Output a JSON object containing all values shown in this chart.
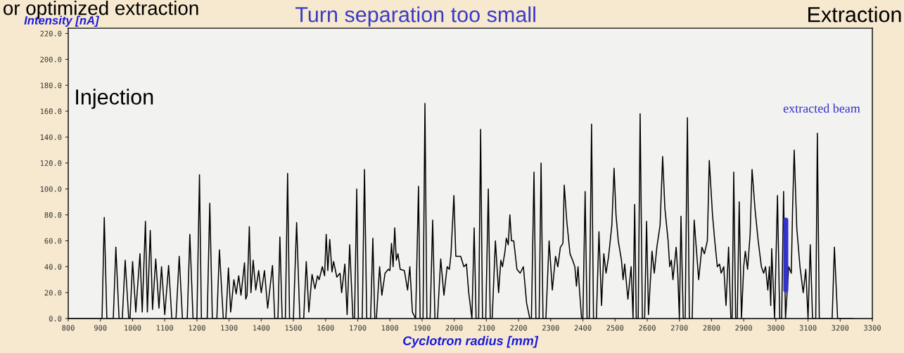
{
  "chart_data": {
    "type": "line",
    "title": "or optimized extraction",
    "xlabel": "Cyclotron radius [mm]",
    "ylabel": "Intensity [nA]",
    "annotations": [
      "Turn separation too small",
      "Injection",
      "Extraction"
    ],
    "xlim": [
      800,
      3300
    ],
    "ylim": [
      0,
      224
    ],
    "xticks": [
      800,
      900,
      1000,
      1100,
      1200,
      1300,
      1400,
      1500,
      1600,
      1700,
      1800,
      1900,
      2000,
      2100,
      2200,
      2300,
      2400,
      2500,
      2600,
      2700,
      2800,
      2900,
      3000,
      3100,
      3200,
      3300
    ],
    "yticks": [
      {
        "value": 0,
        "label": "0.0"
      },
      {
        "value": 20,
        "label": "20.0"
      },
      {
        "value": 40,
        "label": "40.0"
      },
      {
        "value": 60,
        "label": "60.0"
      },
      {
        "value": 80,
        "label": "80.0"
      },
      {
        "value": 100,
        "label": "100.0"
      },
      {
        "value": 120,
        "label": "120.0"
      },
      {
        "value": 140,
        "label": "140.0"
      },
      {
        "value": 160,
        "label": "160.0"
      },
      {
        "value": 180,
        "label": "180.0"
      },
      {
        "value": 200,
        "label": "200.0"
      },
      {
        "value": 220,
        "label": "220.0"
      }
    ],
    "grid": false,
    "legend": false,
    "series": [
      {
        "color": "#000000",
        "x": [
          800,
          900,
          905,
          912,
          920,
          940,
          948,
          958,
          968,
          977,
          988,
          992,
          1000,
          1010,
          1023,
          1030,
          1040,
          1046,
          1055,
          1062,
          1072,
          1082,
          1090,
          1100,
          1112,
          1122,
          1135,
          1145,
          1155,
          1170,
          1178,
          1188,
          1200,
          1208,
          1214,
          1232,
          1240,
          1248,
          1262,
          1270,
          1282,
          1290,
          1298,
          1305,
          1315,
          1322,
          1330,
          1337,
          1348,
          1352,
          1356,
          1363,
          1368,
          1375,
          1383,
          1392,
          1400,
          1410,
          1420,
          1435,
          1442,
          1452,
          1458,
          1465,
          1475,
          1482,
          1488,
          1500,
          1510,
          1520,
          1532,
          1540,
          1548,
          1558,
          1567,
          1575,
          1580,
          1590,
          1597,
          1602,
          1607,
          1613,
          1620,
          1625,
          1635,
          1645,
          1650,
          1660,
          1667,
          1675,
          1685,
          1690,
          1697,
          1702,
          1714,
          1721,
          1728,
          1740,
          1747,
          1753,
          1758,
          1768,
          1775,
          1785,
          1795,
          1800,
          1805,
          1810,
          1815,
          1820,
          1825,
          1832,
          1845,
          1855,
          1862,
          1870,
          1880,
          1889,
          1894,
          1903,
          1909,
          1915,
          1925,
          1933,
          1940,
          1948,
          1958,
          1968,
          1978,
          1985,
          1990,
          1999,
          2005,
          2020,
          2030,
          2038,
          2045,
          2055,
          2062,
          2068,
          2076,
          2082,
          2088,
          2098,
          2106,
          2112,
          2118,
          2128,
          2138,
          2145,
          2150,
          2158,
          2162,
          2168,
          2173,
          2178,
          2185,
          2195,
          2205,
          2215,
          2225,
          2235,
          2240,
          2248,
          2254,
          2264,
          2270,
          2276,
          2285,
          2295,
          2305,
          2315,
          2322,
          2330,
          2338,
          2342,
          2350,
          2360,
          2368,
          2375,
          2380,
          2385,
          2390,
          2396,
          2400,
          2407,
          2413,
          2420,
          2427,
          2433,
          2442,
          2450,
          2458,
          2465,
          2472,
          2480,
          2490,
          2497,
          2503,
          2510,
          2520,
          2525,
          2530,
          2540,
          2550,
          2556,
          2561,
          2566,
          2572,
          2578,
          2585,
          2592,
          2598,
          2604,
          2615,
          2622,
          2630,
          2640,
          2648,
          2655,
          2665,
          2670,
          2675,
          2680,
          2690,
          2695,
          2700,
          2705,
          2712,
          2718,
          2725,
          2731,
          2740,
          2746,
          2760,
          2770,
          2778,
          2787,
          2793,
          2803,
          2810,
          2818,
          2825,
          2830,
          2838,
          2845,
          2853,
          2860,
          2864,
          2869,
          2875,
          2880,
          2886,
          2893,
          2900,
          2905,
          2912,
          2920,
          2926,
          2935,
          2945,
          2955,
          2962,
          2968,
          2975,
          2980,
          2984,
          2987,
          2996,
          3005,
          3012,
          3018,
          3024,
          3030,
          3040,
          3048,
          3052,
          3057,
          3065,
          3075,
          3085,
          3093,
          3100,
          3107,
          3114,
          3124,
          3129,
          3135,
          3175,
          3182,
          3192,
          3240
        ],
        "values": [
          0,
          0,
          0,
          78,
          0,
          0,
          55,
          0,
          0,
          45,
          0,
          0,
          44,
          5,
          50,
          5,
          75,
          5,
          68,
          7,
          46,
          8,
          40,
          3,
          41,
          0,
          0,
          48,
          0,
          0,
          65,
          0,
          0,
          111,
          0,
          0,
          89,
          0,
          0,
          53,
          0,
          0,
          39,
          5,
          30,
          19,
          33,
          18,
          43,
          15,
          18,
          71,
          20,
          45,
          22,
          37,
          20,
          37,
          8,
          41,
          0,
          0,
          63,
          0,
          0,
          112,
          0,
          0,
          74,
          0,
          0,
          44,
          5,
          34,
          23,
          33,
          30,
          40,
          33,
          65,
          37,
          61,
          36,
          44,
          32,
          35,
          20,
          42,
          3,
          57,
          0,
          0,
          100,
          0,
          0,
          115,
          0,
          0,
          62,
          0,
          0,
          40,
          18,
          35,
          38,
          37,
          58,
          40,
          70,
          45,
          50,
          38,
          37,
          22,
          40,
          5,
          0,
          102,
          0,
          0,
          166,
          0,
          0,
          76,
          0,
          0,
          46,
          18,
          40,
          38,
          50,
          95,
          48,
          48,
          40,
          42,
          20,
          0,
          70,
          0,
          0,
          146,
          0,
          0,
          100,
          0,
          0,
          60,
          20,
          45,
          40,
          52,
          62,
          57,
          80,
          60,
          60,
          38,
          35,
          40,
          12,
          0,
          0,
          113,
          0,
          0,
          120,
          0,
          0,
          60,
          22,
          48,
          40,
          55,
          58,
          103,
          75,
          50,
          45,
          40,
          25,
          40,
          20,
          0,
          0,
          98,
          0,
          0,
          150,
          0,
          0,
          67,
          10,
          50,
          35,
          48,
          72,
          116,
          80,
          60,
          45,
          30,
          42,
          15,
          40,
          0,
          88,
          0,
          0,
          158,
          0,
          0,
          75,
          3,
          52,
          35,
          55,
          72,
          125,
          85,
          60,
          40,
          45,
          30,
          55,
          35,
          0,
          79,
          0,
          0,
          155,
          0,
          0,
          76,
          30,
          55,
          50,
          60,
          122,
          80,
          60,
          40,
          42,
          35,
          40,
          10,
          55,
          0,
          0,
          113,
          0,
          0,
          90,
          0,
          40,
          52,
          38,
          65,
          115,
          85,
          60,
          40,
          35,
          40,
          22,
          40,
          10,
          54,
          0,
          95,
          0,
          0,
          98,
          0,
          40,
          35,
          85,
          130,
          70,
          40,
          20,
          38,
          0,
          57,
          0,
          0,
          143,
          0,
          0,
          55,
          0,
          0
        ]
      },
      {
        "name": "extracted beam",
        "color": "#3333cc",
        "x": [
          3031,
          3031
        ],
        "values": [
          22,
          76
        ]
      }
    ]
  }
}
